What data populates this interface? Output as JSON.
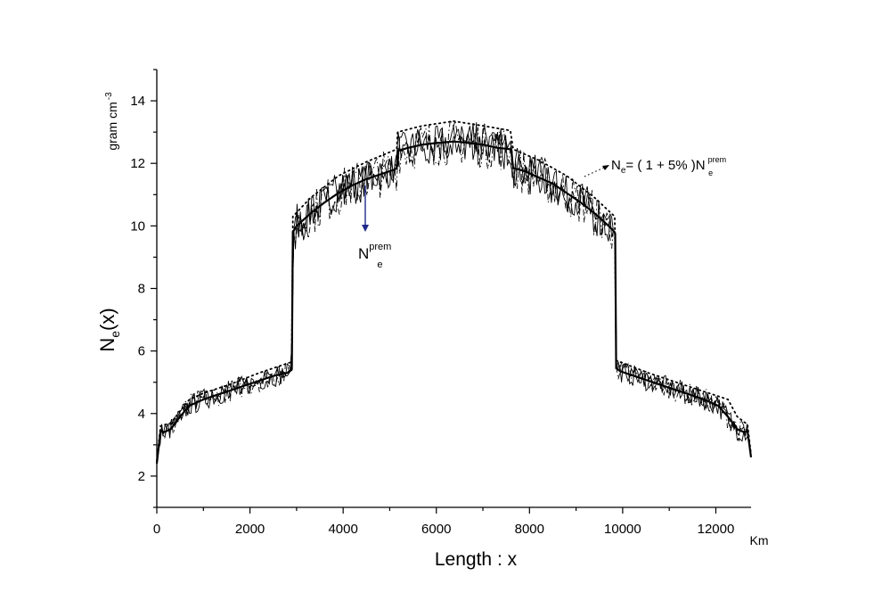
{
  "chart_data": {
    "type": "line",
    "xlabel": "Length  :  x",
    "xunit": "Km",
    "ylabel_main": "N",
    "ylabel_sub": "e",
    "ylabel_tail": "(x)",
    "yunit_main": "gram  cm",
    "yunit_exp": "-3",
    "xlim": [
      0,
      12756
    ],
    "ylim": [
      1,
      15
    ],
    "x_ticks": [
      0,
      2000,
      4000,
      6000,
      8000,
      10000,
      12000
    ],
    "y_ticks": [
      2,
      4,
      6,
      8,
      10,
      12,
      14
    ],
    "grid": false,
    "series": [
      {
        "style": "solid-thick",
        "x": [
          0,
          80,
          150,
          300,
          500,
          700,
          1000,
          1300,
          1600,
          1900,
          2200,
          2500,
          2800,
          2895,
          2900,
          2920,
          3000,
          3300,
          3600,
          3900,
          4200,
          4500,
          4800,
          5100,
          5150,
          5170,
          5400,
          5700,
          6000,
          6378,
          6700,
          7000,
          7300,
          7590,
          7610,
          7650,
          7900,
          8200,
          8500,
          8800,
          9100,
          9400,
          9700,
          9830,
          9840,
          9860,
          9950,
          10250,
          10550,
          10850,
          11150,
          11450,
          11750,
          12050,
          12260,
          12460,
          12610,
          12680,
          12756
        ],
        "values": [
          2.4,
          3.45,
          3.4,
          3.5,
          3.9,
          4.25,
          4.45,
          4.6,
          4.75,
          4.9,
          5.05,
          5.2,
          5.3,
          5.4,
          5.45,
          9.8,
          10.0,
          10.4,
          10.75,
          11.05,
          11.3,
          11.5,
          11.65,
          11.8,
          11.85,
          12.4,
          12.5,
          12.6,
          12.65,
          12.7,
          12.65,
          12.6,
          12.5,
          12.45,
          12.4,
          11.85,
          11.75,
          11.55,
          11.35,
          11.05,
          10.75,
          10.4,
          10.0,
          9.8,
          9.75,
          5.45,
          5.35,
          5.2,
          5.05,
          4.9,
          4.75,
          4.6,
          4.45,
          4.25,
          3.9,
          3.5,
          3.4,
          3.45,
          2.6
        ]
      },
      {
        "style": "dotted",
        "x": [
          0,
          80,
          300,
          700,
          1000,
          1600,
          2200,
          2895,
          2920,
          3300,
          3900,
          4500,
          5150,
          5170,
          5700,
          6378,
          7000,
          7590,
          7650,
          8200,
          8800,
          9400,
          9830,
          9860,
          10550,
          11150,
          11750,
          12260,
          12460,
          12680,
          12756
        ],
        "values": [
          2.5,
          3.6,
          3.7,
          4.45,
          4.65,
          4.95,
          5.3,
          5.65,
          10.3,
          10.9,
          11.6,
          12.05,
          12.45,
          13.0,
          13.2,
          13.35,
          13.2,
          13.05,
          12.45,
          12.1,
          11.6,
          10.9,
          10.3,
          5.7,
          5.3,
          5.0,
          4.7,
          4.45,
          3.9,
          3.65,
          2.7
        ]
      }
    ],
    "annotations": {
      "formula_main": "N",
      "formula_sub": "e",
      "formula_mid": "= ( 1 + 5% )N",
      "formula_sup": "prem",
      "formula_sub2": "e",
      "prem_main": "N",
      "prem_sup": "prem",
      "prem_sub": "e"
    },
    "colors": {
      "line": "#000000",
      "arrow": "#1f2a8a"
    }
  }
}
